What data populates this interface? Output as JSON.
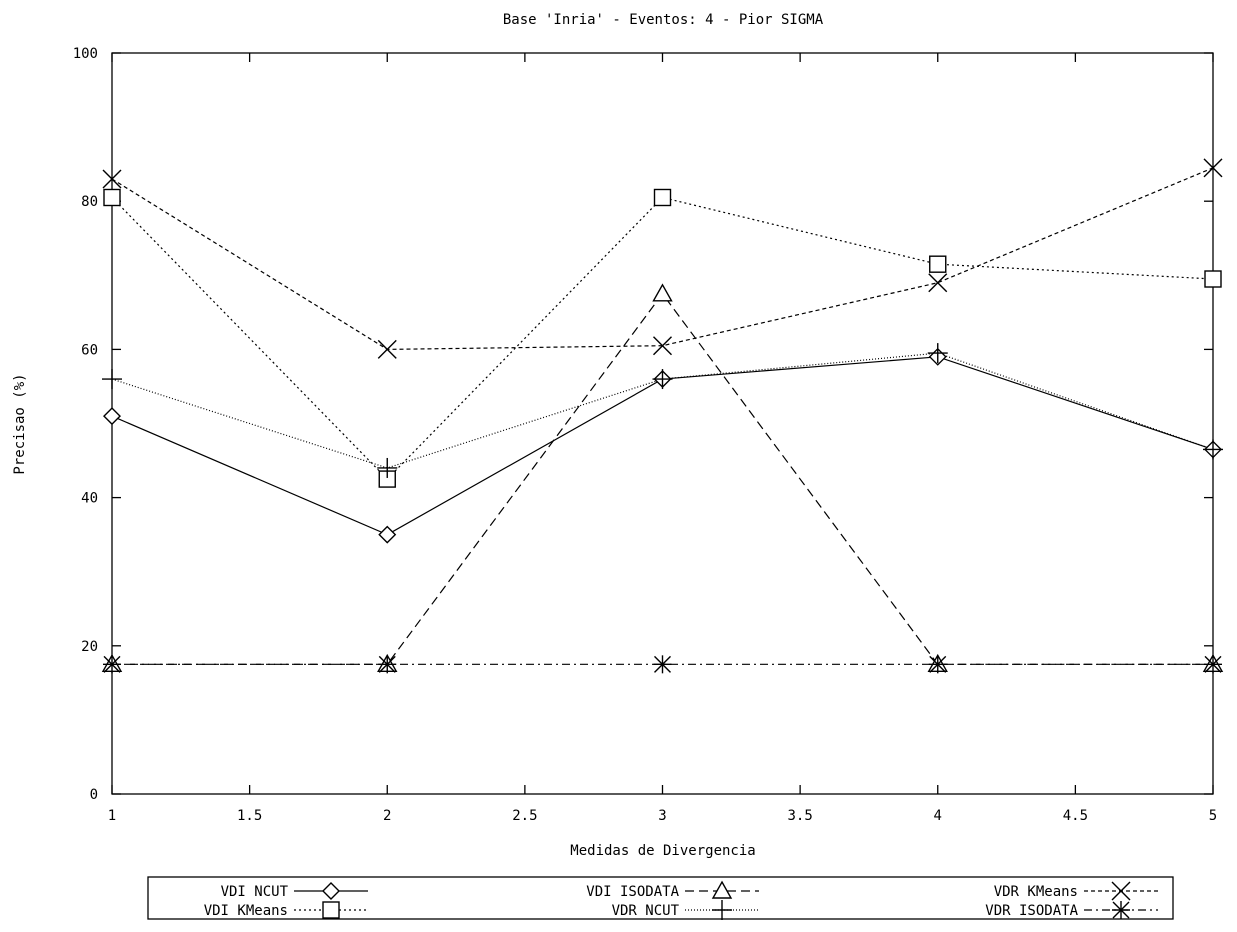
{
  "chart_data": {
    "type": "line",
    "title": "Base 'Inria' - Eventos: 4 - Pior SIGMA",
    "xlabel": "Medidas de Divergencia",
    "ylabel": "Precisao (%)",
    "xlim": [
      1,
      5
    ],
    "ylim": [
      0,
      100
    ],
    "x_ticks": [
      1,
      1.5,
      2,
      2.5,
      3,
      3.5,
      4,
      4.5,
      5
    ],
    "x_tick_labels": [
      "1",
      "1.5",
      "2",
      "2.5",
      "3",
      "3.5",
      "4",
      "4.5",
      "5"
    ],
    "y_ticks": [
      0,
      20,
      40,
      60,
      80,
      100
    ],
    "y_tick_labels": [
      "0",
      "20",
      "40",
      "60",
      "80",
      "100"
    ],
    "grid": false,
    "legend_position": "bottom",
    "x": [
      1,
      2,
      3,
      4,
      5
    ],
    "series": [
      {
        "name": "VDI NCUT",
        "marker": "diamond",
        "dash": "solid",
        "values": [
          51,
          35,
          56,
          59,
          46.5
        ]
      },
      {
        "name": "VDI KMeans",
        "marker": "square",
        "dash": "dotted",
        "values": [
          80.5,
          42.5,
          80.5,
          71.5,
          69.5
        ]
      },
      {
        "name": "VDI ISODATA",
        "marker": "triangle",
        "dash": "longdash",
        "values": [
          17.5,
          17.5,
          67.5,
          17.5,
          17.5
        ]
      },
      {
        "name": "VDR NCUT",
        "marker": "plus",
        "dash": "dot-fine",
        "values": [
          56,
          44,
          56,
          59.5,
          46.5
        ]
      },
      {
        "name": "VDR KMeans",
        "marker": "x",
        "dash": "dashed",
        "values": [
          83,
          60,
          60.5,
          69,
          84.5
        ]
      },
      {
        "name": "VDR ISODATA",
        "marker": "star",
        "dash": "dashdot",
        "values": [
          17.5,
          17.5,
          17.5,
          17.5,
          17.5
        ]
      }
    ]
  }
}
